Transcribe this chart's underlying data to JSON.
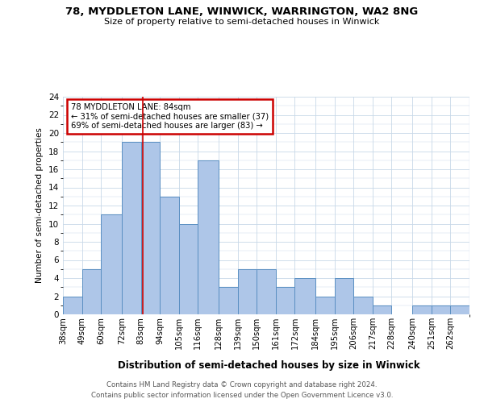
{
  "title1": "78, MYDDLETON LANE, WINWICK, WARRINGTON, WA2 8NG",
  "title2": "Size of property relative to semi-detached houses in Winwick",
  "xlabel": "Distribution of semi-detached houses by size in Winwick",
  "ylabel": "Number of semi-detached properties",
  "footer1": "Contains HM Land Registry data © Crown copyright and database right 2024.",
  "footer2": "Contains public sector information licensed under the Open Government Licence v3.0.",
  "categories": [
    "38sqm",
    "49sqm",
    "60sqm",
    "72sqm",
    "83sqm",
    "94sqm",
    "105sqm",
    "116sqm",
    "128sqm",
    "139sqm",
    "150sqm",
    "161sqm",
    "172sqm",
    "184sqm",
    "195sqm",
    "206sqm",
    "217sqm",
    "228sqm",
    "240sqm",
    "251sqm",
    "262sqm"
  ],
  "values": [
    2,
    5,
    11,
    19,
    19,
    13,
    10,
    17,
    3,
    5,
    5,
    3,
    4,
    2,
    4,
    2,
    1,
    0,
    1,
    1,
    1
  ],
  "bar_color": "#aec6e8",
  "bar_edge_color": "#5a8fc2",
  "red_line_x": 84,
  "bin_edges": [
    38,
    49,
    60,
    72,
    83,
    94,
    105,
    116,
    128,
    139,
    150,
    161,
    172,
    184,
    195,
    206,
    217,
    228,
    240,
    251,
    262,
    273
  ],
  "annotation_title": "78 MYDDLETON LANE: 84sqm",
  "annotation_line1": "← 31% of semi-detached houses are smaller (37)",
  "annotation_line2": "69% of semi-detached houses are larger (83) →",
  "ylim": [
    0,
    24
  ],
  "yticks": [
    0,
    2,
    4,
    6,
    8,
    10,
    12,
    14,
    16,
    18,
    20,
    22,
    24
  ],
  "annotation_box_color": "#ffffff",
  "annotation_box_edge_color": "#cc0000",
  "red_line_color": "#cc0000",
  "background_color": "#ffffff",
  "grid_color": "#c8d8e8"
}
